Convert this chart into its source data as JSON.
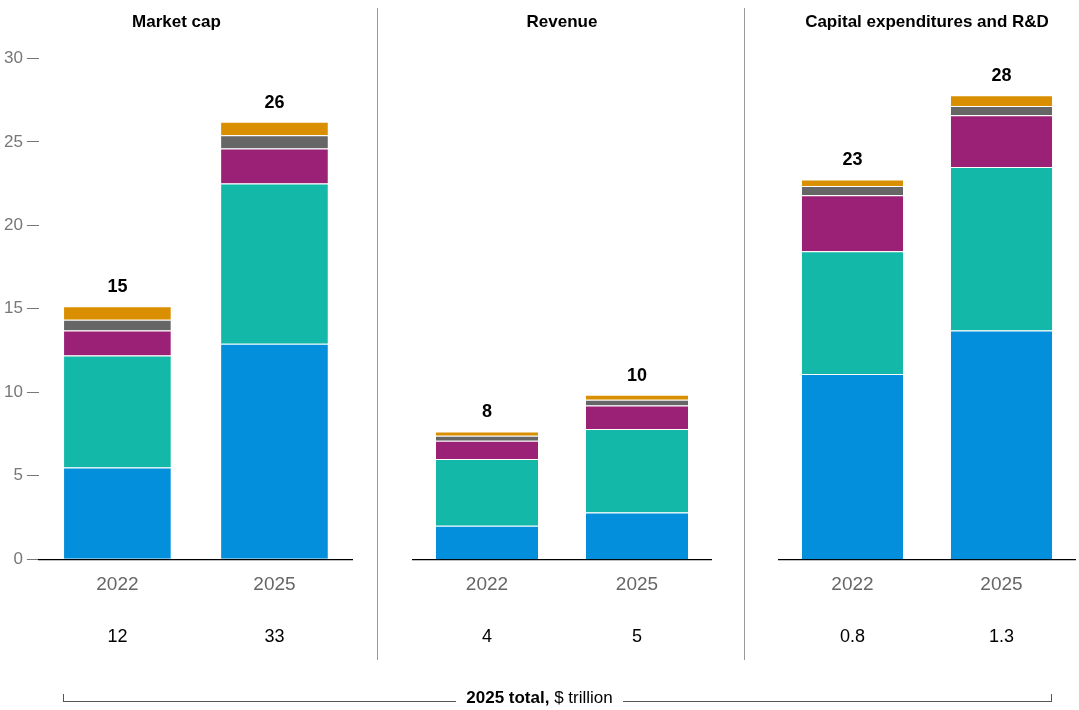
{
  "chart_data": [
    {
      "type": "bar",
      "title": "Market cap",
      "categories": [
        "2022",
        "2025"
      ],
      "stacked": true,
      "ylim": [
        0,
        30
      ],
      "yticks": [
        0,
        5,
        10,
        15,
        20,
        25,
        30
      ],
      "grid": false,
      "legend": false,
      "series": [
        {
          "color": "#038fdb",
          "values": [
            5.5,
            12.9
          ]
        },
        {
          "color": "#14b8a8",
          "values": [
            6.7,
            9.6
          ]
        },
        {
          "color": "#9b2177",
          "values": [
            1.5,
            2.1
          ]
        },
        {
          "color": "#666666",
          "values": [
            0.65,
            0.8
          ]
        },
        {
          "color": "#d98f00",
          "values": [
            0.8,
            0.8
          ]
        }
      ],
      "totals": [
        "15",
        "26"
      ],
      "annotations": [
        "12",
        "33",
        "2025 total, $ trillion"
      ]
    },
    {
      "type": "bar",
      "title": "Revenue",
      "categories": [
        "2022",
        "2025"
      ],
      "stacked": true,
      "ylim": [
        0,
        30
      ],
      "yticks": [
        0,
        5,
        10,
        15,
        20,
        25,
        30
      ],
      "tick_labels": "x",
      "grid": false,
      "legend": false,
      "series": [
        {
          "color": "#038fdb",
          "values": [
            2.0,
            2.8
          ]
        },
        {
          "color": "#14b8a8",
          "values": [
            4.0,
            5.0
          ]
        },
        {
          "color": "#9b2177",
          "values": [
            1.1,
            1.4
          ]
        },
        {
          "color": "#666666",
          "values": [
            0.3,
            0.35
          ]
        },
        {
          "color": "#d98f00",
          "values": [
            0.25,
            0.3
          ]
        }
      ],
      "totals": [
        "8",
        "10"
      ],
      "annotations": [
        "4",
        "5"
      ]
    },
    {
      "type": "bar",
      "title": "Capital expenditures and R&D",
      "categories": [
        "2022",
        "2025"
      ],
      "stacked": true,
      "ylim": [
        0,
        30
      ],
      "yticks": [
        0,
        5,
        10,
        15,
        20,
        25,
        30
      ],
      "tick_labels": "x",
      "grid": false,
      "legend": false,
      "series": [
        {
          "color": "#038fdb",
          "values": [
            11.1,
            13.7
          ]
        },
        {
          "color": "#14b8a8",
          "values": [
            7.35,
            9.8
          ]
        },
        {
          "color": "#9b2177",
          "values": [
            3.35,
            3.1
          ]
        },
        {
          "color": "#666666",
          "values": [
            0.55,
            0.55
          ]
        },
        {
          "color": "#d98f00",
          "values": [
            0.4,
            0.65
          ]
        }
      ],
      "totals": [
        "23",
        "28"
      ],
      "annotations": [
        "0.8",
        "1.3"
      ]
    }
  ]
}
